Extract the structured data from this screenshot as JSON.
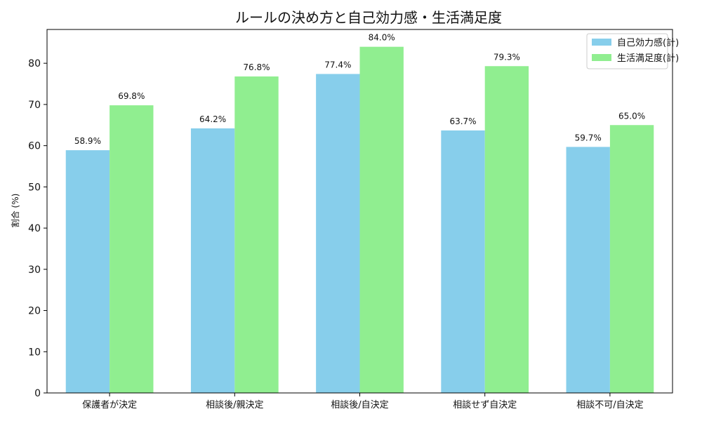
{
  "chart_data": {
    "type": "bar",
    "title": "ルールの決め方と自己効力感・生活満足度",
    "xlabel": "",
    "ylabel": "割合 (%)",
    "categories": [
      "保護者が決定",
      "相談後/親決定",
      "相談後/自決定",
      "相談せず自決定",
      "相談不可/自決定"
    ],
    "series": [
      {
        "name": "自己効力感(計)",
        "color": "#87ceeb",
        "values": [
          58.9,
          64.2,
          77.4,
          63.7,
          59.7
        ]
      },
      {
        "name": "生活満足度(計)",
        "color": "#90ee90",
        "values": [
          69.8,
          76.8,
          84.0,
          79.3,
          65.0
        ]
      }
    ],
    "ylim": [
      0,
      88.2
    ],
    "yticks": [
      0,
      10,
      20,
      30,
      40,
      50,
      60,
      70,
      80
    ],
    "value_suffix": "%",
    "grid": false,
    "legend_position": "top-right"
  }
}
